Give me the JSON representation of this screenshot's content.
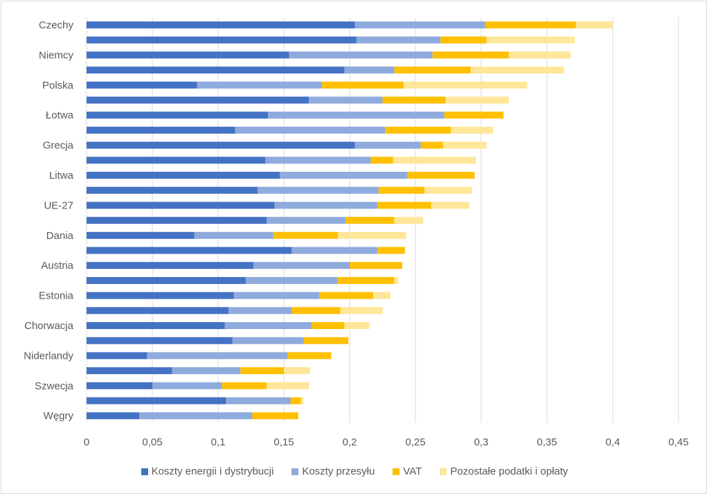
{
  "chart_data": {
    "type": "bar",
    "orientation": "horizontal",
    "stacked": true,
    "title": "",
    "xlabel": "",
    "ylabel": "",
    "xlim": [
      0,
      0.45
    ],
    "x_ticks": [
      "0",
      "0,05",
      "0,1",
      "0,15",
      "0,2",
      "0,25",
      "0,3",
      "0,35",
      "0,4",
      "0,45"
    ],
    "x_tick_values": [
      0,
      0.05,
      0.1,
      0.15,
      0.2,
      0.25,
      0.3,
      0.35,
      0.4,
      0.45
    ],
    "grid": "vertical",
    "legend_position": "bottom",
    "categories": [
      "Czechy",
      "",
      "Niemcy",
      "",
      "Polska",
      "",
      "Łotwa",
      "",
      "Grecja",
      "",
      "Litwa",
      "",
      "UE-27",
      "",
      "Dania",
      "",
      "Austria",
      "",
      "Estonia",
      "",
      "Chorwacja",
      "",
      "Niderlandy",
      "",
      "Szwecja",
      "",
      "Węgry"
    ],
    "series": [
      {
        "name": "Koszty energii i dystrybucji",
        "color": "#4472C4",
        "values": [
          0.204,
          0.205,
          0.154,
          0.196,
          0.084,
          0.169,
          0.138,
          0.113,
          0.204,
          0.136,
          0.147,
          0.13,
          0.143,
          0.137,
          0.082,
          0.156,
          0.127,
          0.121,
          0.112,
          0.108,
          0.105,
          0.111,
          0.046,
          0.065,
          0.05,
          0.106,
          0.04
        ]
      },
      {
        "name": "Koszty przesyłu",
        "color": "#8FAADC",
        "values": [
          0.099,
          0.064,
          0.109,
          0.038,
          0.095,
          0.056,
          0.134,
          0.114,
          0.05,
          0.08,
          0.097,
          0.092,
          0.078,
          0.06,
          0.06,
          0.065,
          0.073,
          0.07,
          0.065,
          0.048,
          0.066,
          0.054,
          0.107,
          0.052,
          0.053,
          0.049,
          0.086
        ]
      },
      {
        "name": "VAT",
        "color": "#FFC000",
        "values": [
          0.069,
          0.035,
          0.058,
          0.058,
          0.062,
          0.048,
          0.045,
          0.05,
          0.017,
          0.017,
          0.051,
          0.035,
          0.041,
          0.037,
          0.049,
          0.021,
          0.04,
          0.043,
          0.041,
          0.037,
          0.025,
          0.034,
          0.033,
          0.033,
          0.034,
          0.008,
          0.035
        ]
      },
      {
        "name": "Pozostałe podatki i opłaty",
        "color": "#FFE699",
        "values": [
          0.028,
          0.067,
          0.047,
          0.071,
          0.094,
          0.048,
          0.0,
          0.032,
          0.033,
          0.063,
          0.0,
          0.036,
          0.029,
          0.022,
          0.052,
          0.0,
          0.0,
          0.003,
          0.013,
          0.032,
          0.019,
          0.0,
          0.0,
          0.02,
          0.032,
          0.002,
          0.0
        ]
      }
    ]
  }
}
